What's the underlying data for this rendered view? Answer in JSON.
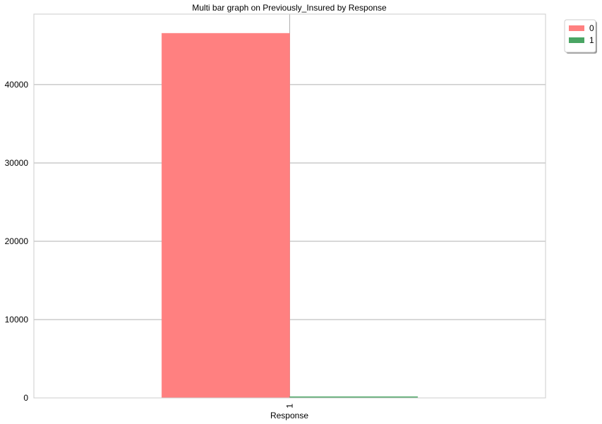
{
  "chart_data": {
    "type": "bar",
    "title": "Multi bar graph on Previously_Insured by Response",
    "xlabel": "Response",
    "ylabel": "",
    "categories": [
      "1"
    ],
    "series": [
      {
        "name": "0",
        "values": [
          46552
        ],
        "color": "#ff8080"
      },
      {
        "name": "1",
        "values": [
          158
        ],
        "color": "#4aa564"
      }
    ],
    "ylim": [
      0,
      49000
    ],
    "yticks": [
      0,
      10000,
      20000,
      30000,
      40000
    ],
    "ytick_labels": [
      "0",
      "10000",
      "20000",
      "30000",
      "40000"
    ],
    "grid": true,
    "legend_position": "upper-right-outside"
  }
}
